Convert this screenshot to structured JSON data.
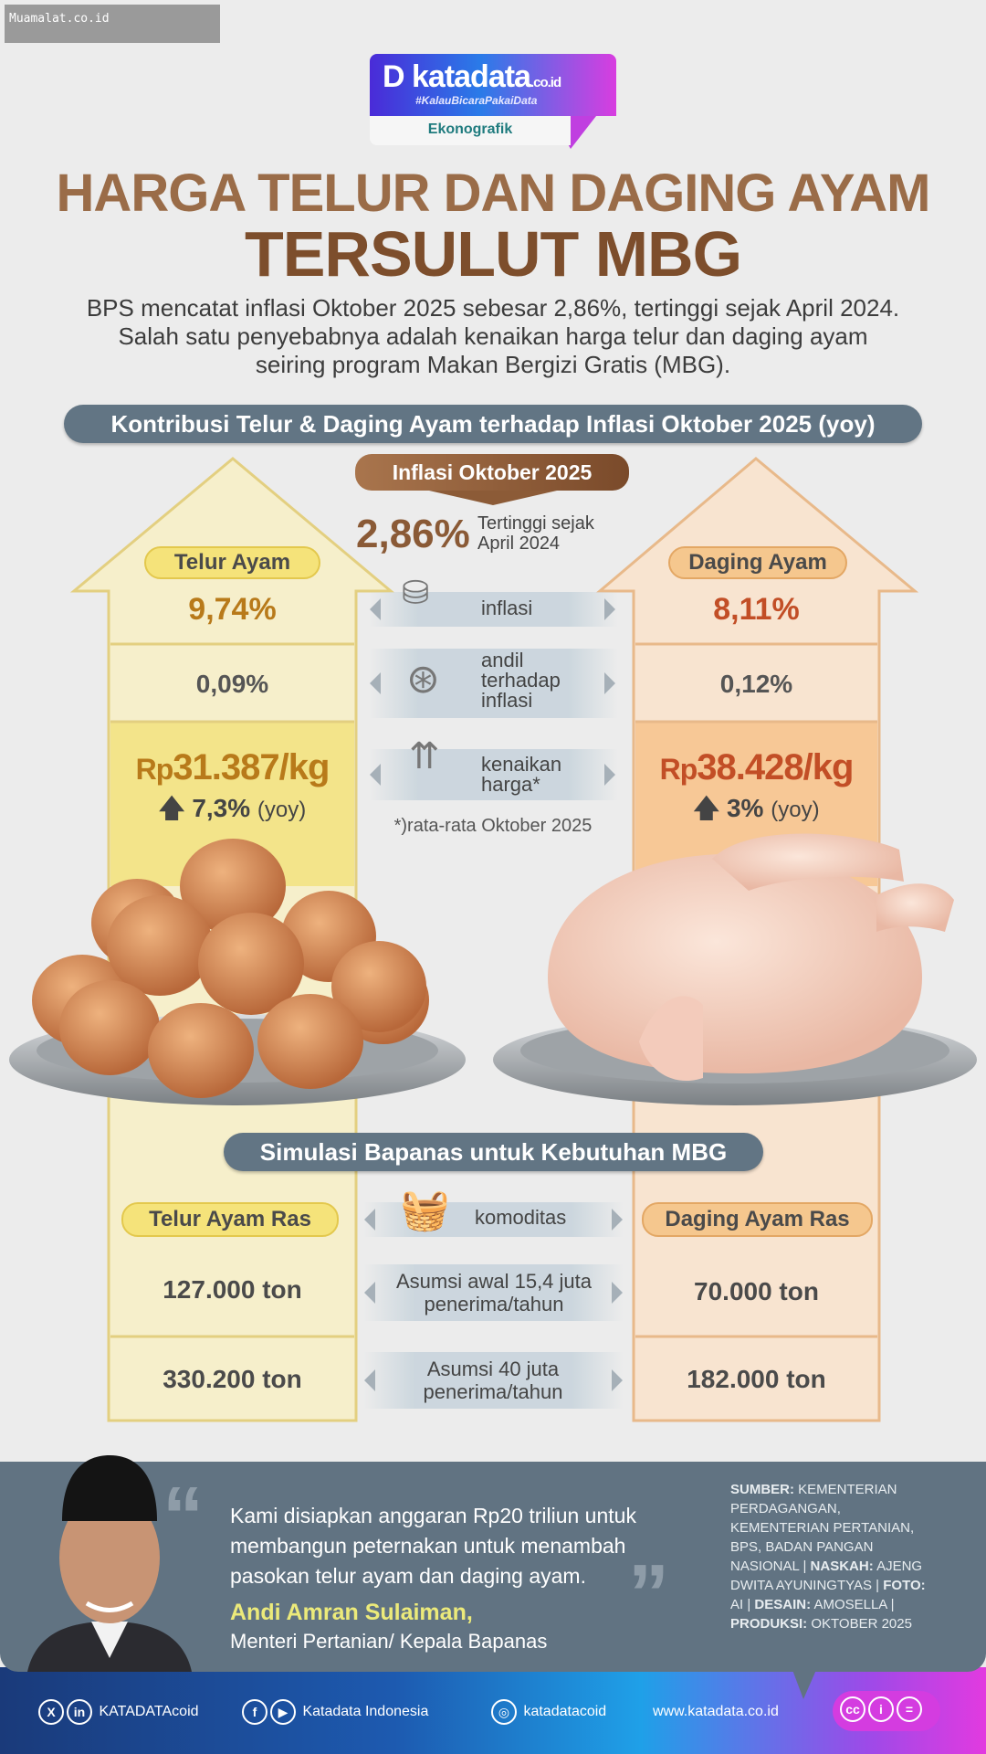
{
  "watermark": "Muamalat.co.id",
  "logo": {
    "name": "katadata",
    "domain": ".co.id",
    "tagline": "#KalauBicaraPakaiData",
    "section": "Ekonografik"
  },
  "title": {
    "line1": "HARGA TELUR DAN DAGING AYAM",
    "line2": "TERSULUT MBG"
  },
  "lead": "BPS mencatat inflasi Oktober 2025 sebesar 2,86%, tertinggi sejak April 2024. Salah satu  penyebabnya adalah kenaikan harga telur dan daging ayam seiring program Makan Bergizi Gratis (MBG).",
  "section1": {
    "title": "Kontribusi Telur & Daging Ayam terhadap Inflasi Oktober 2025 (yoy)",
    "inflation_label": "Inflasi Oktober 2025",
    "inflation_value": "2,86%",
    "inflation_note": "Tertinggi sejak April 2024",
    "rows": [
      "inflasi",
      "andil terhadap inflasi",
      "kenaikan harga*"
    ],
    "footnote": "*)rata-rata Oktober 2025",
    "telur": {
      "label": "Telur Ayam",
      "inflasi": "9,74%",
      "andil": "0,09%",
      "price_prefix": "Rp",
      "price": "31.387/kg",
      "change": "7,3%",
      "change_unit": "(yoy)"
    },
    "daging": {
      "label": "Daging Ayam",
      "inflasi": "8,11%",
      "andil": "0,12%",
      "price_prefix": "Rp",
      "price": "38.428/kg",
      "change": "3%",
      "change_unit": "(yoy)"
    }
  },
  "section2": {
    "title": "Simulasi Bapanas untuk Kebutuhan MBG",
    "rows": [
      "komoditas",
      "Asumsi awal 15,4 juta penerima/tahun",
      "Asumsi 40 juta penerima/tahun"
    ],
    "telur": {
      "label": "Telur Ayam Ras",
      "awal": "127.000 ton",
      "asumsi40": "330.200 ton"
    },
    "daging": {
      "label": "Daging Ayam Ras",
      "awal": "70.000 ton",
      "asumsi40": "182.000 ton"
    }
  },
  "quote": {
    "text": "Kami disiapkan anggaran Rp20 triliun untuk membangun peternakan untuk menambah pasokan telur ayam dan daging ayam.",
    "name": "Andi Amran Sulaiman,",
    "role": "Menteri Pertanian/ Kepala Bapanas"
  },
  "credits": {
    "sumber_label": "SUMBER:",
    "sumber": "KEMENTERIAN PERDAGANGAN, KEMENTERIAN PERTANIAN, BPS, BADAN PANGAN NASIONAL |",
    "naskah_label": "NASKAH:",
    "naskah": "AJENG DWITA AYUNINGTYAS |",
    "foto_label": "FOTO:",
    "foto": "AI |",
    "desain_label": "DESAIN:",
    "desain": "AMOSELLA |",
    "produksi_label": "PRODUKSI:",
    "produksi": "OKTOBER 2025"
  },
  "footer": {
    "twitter_linkedin": "KATADATAcoid",
    "facebook_youtube": "Katadata Indonesia",
    "instagram": "katadatacoid",
    "website": "www.katadata.co.id"
  },
  "colors": {
    "title": "#8a5a36",
    "bar": "#627584",
    "telur_accent": "#b87a1a",
    "daging_accent": "#c24e26"
  }
}
